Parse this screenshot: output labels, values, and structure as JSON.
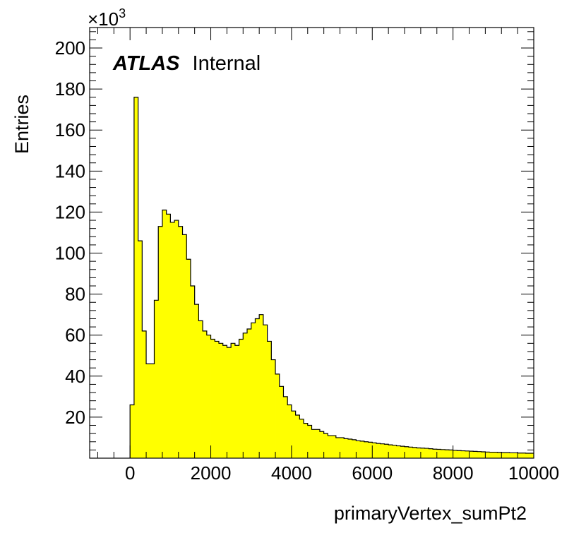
{
  "chart_data": {
    "type": "bar",
    "style": "histogram",
    "fill_color": "#ffff00",
    "line_color": "#000000",
    "xlabel": "primaryVertex_sumPt2",
    "ylabel": "Entries",
    "y_multiplier": "×10",
    "y_multiplier_exp": "3",
    "stamp_bold": "ATLAS",
    "stamp_text": "Internal",
    "xlim": [
      -1000,
      10000
    ],
    "ylim": [
      0,
      210
    ],
    "grid": false,
    "x_ticks": [
      {
        "value": 0,
        "label": "0"
      },
      {
        "value": 2000,
        "label": "2000"
      },
      {
        "value": 4000,
        "label": "4000"
      },
      {
        "value": 6000,
        "label": "6000"
      },
      {
        "value": 8000,
        "label": "8000"
      },
      {
        "value": 10000,
        "label": "10000"
      }
    ],
    "y_ticks": [
      {
        "value": 20,
        "label": "20"
      },
      {
        "value": 40,
        "label": "40"
      },
      {
        "value": 60,
        "label": "60"
      },
      {
        "value": 80,
        "label": "80"
      },
      {
        "value": 100,
        "label": "100"
      },
      {
        "value": 120,
        "label": "120"
      },
      {
        "value": 140,
        "label": "140"
      },
      {
        "value": 160,
        "label": "160"
      },
      {
        "value": 180,
        "label": "180"
      },
      {
        "value": 200,
        "label": "200"
      }
    ],
    "bin_start": 0,
    "bin_width": 100,
    "values": [
      26,
      176,
      106,
      62,
      46,
      46,
      77,
      113,
      121,
      119,
      115,
      116,
      113,
      109,
      97,
      84,
      75,
      67,
      62,
      60,
      58,
      57,
      56,
      55,
      54,
      56,
      55,
      58,
      61,
      63,
      66,
      68,
      70,
      65,
      57,
      48,
      41,
      35,
      30,
      26,
      23,
      21,
      19,
      17,
      16,
      14,
      14,
      13,
      12,
      11,
      11,
      10,
      10,
      9.5,
      9.3,
      9,
      8.5,
      8.3,
      8,
      7.8,
      7.5,
      7.2,
      7,
      6.8,
      6.5,
      6.3,
      6,
      5.8,
      5.6,
      5.4,
      5.2,
      5,
      4.9,
      4.8,
      4.6,
      4.4,
      4.3,
      4.2,
      4.1,
      4,
      3.8,
      3.7,
      3.6,
      3.5,
      3.4,
      3.3,
      3.2,
      3.1,
      3,
      2.9,
      2.9,
      2.8,
      2.7,
      2.7,
      2.6,
      2.6,
      2.5,
      2.5,
      2.4,
      2.4
    ]
  }
}
